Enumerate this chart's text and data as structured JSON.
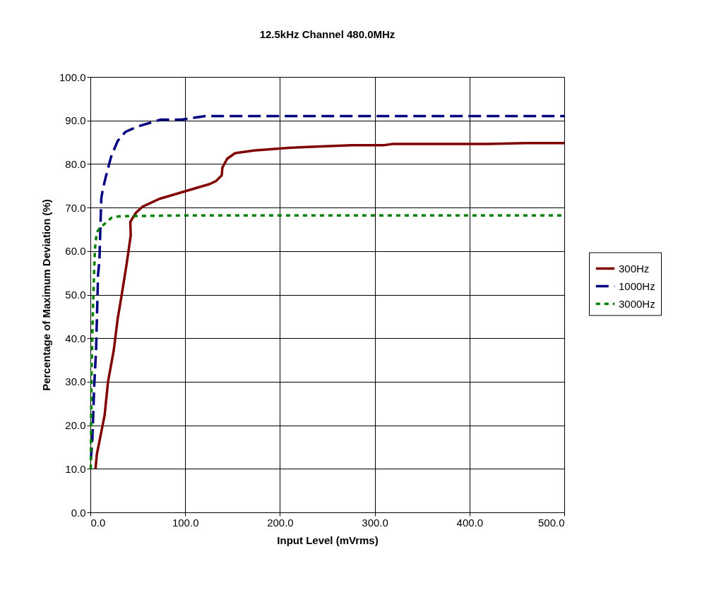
{
  "chart_data": {
    "type": "line",
    "title": "12.5kHz Channel  480.0MHz",
    "xlabel": "Input Level (mVrms)",
    "ylabel": "Percentage of Maximum Deviation (%)",
    "xlim": [
      0,
      500
    ],
    "ylim": [
      0,
      100
    ],
    "xticks": [
      {
        "value": 0,
        "label": "0.0"
      },
      {
        "value": 100,
        "label": "100.0"
      },
      {
        "value": 200,
        "label": "200.0"
      },
      {
        "value": 300,
        "label": "300.0"
      },
      {
        "value": 400,
        "label": "400.0"
      },
      {
        "value": 500,
        "label": "500.0"
      }
    ],
    "yticks": [
      {
        "value": 0,
        "label": "0.0"
      },
      {
        "value": 10,
        "label": "10.0"
      },
      {
        "value": 20,
        "label": "20.0"
      },
      {
        "value": 30,
        "label": "30.0"
      },
      {
        "value": 40,
        "label": "40.0"
      },
      {
        "value": 50,
        "label": "50.0"
      },
      {
        "value": 60,
        "label": "60.0"
      },
      {
        "value": 70,
        "label": "70.0"
      },
      {
        "value": 80,
        "label": "80.0"
      },
      {
        "value": 90,
        "label": "90.0"
      },
      {
        "value": 100,
        "label": "100.0"
      }
    ],
    "grid": true,
    "legend": "right",
    "marker": "none",
    "series": [
      {
        "name": "300Hz",
        "color": "#800000",
        "line_style": "solid",
        "x": [
          5.4,
          6.8,
          15,
          18.6,
          24.7,
          28.8,
          33,
          38.5,
          42.6,
          42.1,
          48,
          55,
          72.8,
          99.4,
          126,
          132.6,
          138.6,
          139.3,
          144.3,
          152.6,
          172.6,
          209,
          229,
          276,
          309,
          319,
          419,
          459,
          500
        ],
        "values": [
          10,
          13.3,
          22.3,
          30,
          37.3,
          44.5,
          49.9,
          57.4,
          63.7,
          66.7,
          68.8,
          70.2,
          72,
          73.7,
          75.4,
          76.1,
          77.4,
          79.2,
          81.2,
          82.5,
          83.1,
          83.7,
          83.9,
          84.3,
          84.3,
          84.6,
          84.6,
          84.8,
          84.8
        ]
      },
      {
        "name": "1000Hz",
        "color": "#000080",
        "line_style": "dashed",
        "x": [
          0.4,
          2.1,
          4,
          6,
          8.1,
          9.5,
          10.9,
          11.5,
          13.1,
          16.4,
          21.9,
          28.8,
          37.1,
          49.6,
          74.4,
          96.4,
          121.3,
          200,
          300,
          400,
          500
        ],
        "values": [
          12,
          16.9,
          28.9,
          37.3,
          54.7,
          57.7,
          67.9,
          72.1,
          74.2,
          77.2,
          81.7,
          85.3,
          87.4,
          88.6,
          90.2,
          90.2,
          91,
          91,
          91,
          91,
          91
        ]
      },
      {
        "name": "3000Hz",
        "color": "#008000",
        "line_style": "dotted",
        "x": [
          0.4,
          1.2,
          2.6,
          4,
          4.9,
          6.7,
          9.5,
          21.9,
          30.2,
          100,
          200,
          300,
          400,
          500
        ],
        "values": [
          10,
          31.9,
          45.7,
          55.9,
          60.7,
          64.3,
          65.2,
          67.6,
          68,
          68.2,
          68.2,
          68.2,
          68.2,
          68.2
        ]
      }
    ]
  }
}
